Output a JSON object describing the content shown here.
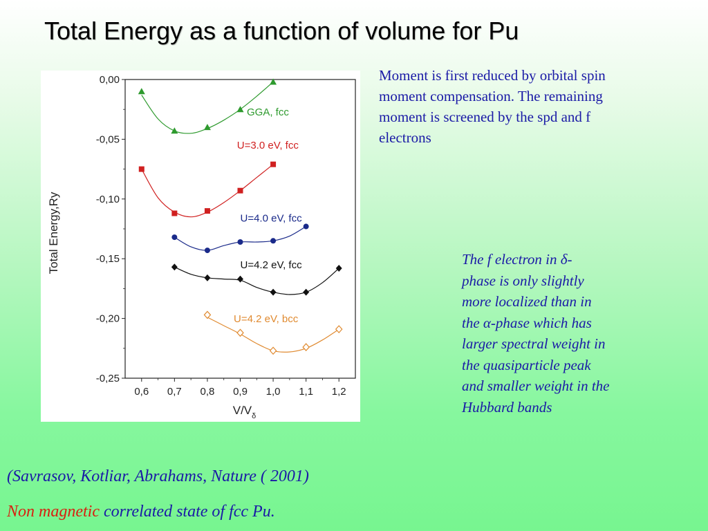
{
  "title": "Total Energy as a function of volume for Pu",
  "note_right": {
    "lines": [
      "Moment is first reduced by orbital spin",
      "moment compensation. The remaining",
      "moment is   screened by the spd and f",
      "electrons"
    ]
  },
  "note_italic": {
    "lines": [
      "The  f electron in δ-",
      "phase is  only slightly",
      "more  localized  than in",
      "the α-phase which has",
      "larger spectral weight in",
      "the quasiparticle peak",
      "and smaller weight in the",
      "Hubbard bands"
    ]
  },
  "citation": "(Savrasov, Kotliar, Abrahams,  Nature ( 2001)",
  "state": {
    "red_part": "Non magnetic",
    "blue_part": " correlated state of fcc Pu."
  },
  "chart_data": {
    "type": "line",
    "xlabel": "V/V",
    "xlabel_sub": "δ",
    "ylabel": "Total Energy,Ry",
    "xlim": [
      0.55,
      1.25
    ],
    "ylim": [
      -0.25,
      0.0
    ],
    "x_ticks": [
      "0,6",
      "0,7",
      "0,8",
      "0,9",
      "1,0",
      "1,1",
      "1,2"
    ],
    "y_ticks": [
      "0,00",
      "-0,05",
      "-0,10",
      "-0,15",
      "-0,20",
      "-0,25"
    ],
    "grid": false,
    "series": [
      {
        "name": "GGA, fcc",
        "color": "#2e9a2e",
        "marker": "triangle",
        "x": [
          0.6,
          0.7,
          0.8,
          0.9,
          1.0
        ],
        "y": [
          -0.01,
          -0.043,
          -0.04,
          -0.025,
          -0.002
        ],
        "curve": [
          [
            0.6,
            -0.013
          ],
          [
            0.65,
            -0.033
          ],
          [
            0.7,
            -0.043
          ],
          [
            0.75,
            -0.045
          ],
          [
            0.8,
            -0.041
          ],
          [
            0.85,
            -0.034
          ],
          [
            0.9,
            -0.025
          ],
          [
            0.95,
            -0.014
          ],
          [
            1.0,
            -0.002
          ]
        ]
      },
      {
        "name": "U=3.0 eV, fcc",
        "color": "#d02020",
        "marker": "square",
        "x": [
          0.6,
          0.7,
          0.8,
          0.9,
          1.0
        ],
        "y": [
          -0.075,
          -0.112,
          -0.11,
          -0.093,
          -0.071
        ],
        "curve": [
          [
            0.6,
            -0.075
          ],
          [
            0.65,
            -0.099
          ],
          [
            0.7,
            -0.111
          ],
          [
            0.75,
            -0.115
          ],
          [
            0.8,
            -0.111
          ],
          [
            0.85,
            -0.103
          ],
          [
            0.9,
            -0.093
          ],
          [
            0.95,
            -0.082
          ],
          [
            1.0,
            -0.071
          ]
        ]
      },
      {
        "name": "U=4.0 eV, fcc",
        "color": "#1a2a8a",
        "marker": "circle",
        "x": [
          0.7,
          0.8,
          0.9,
          1.0,
          1.1
        ],
        "y": [
          -0.132,
          -0.143,
          -0.136,
          -0.135,
          -0.123
        ],
        "curve": [
          [
            0.7,
            -0.132
          ],
          [
            0.75,
            -0.14
          ],
          [
            0.8,
            -0.143
          ],
          [
            0.85,
            -0.139
          ],
          [
            0.9,
            -0.136
          ],
          [
            0.95,
            -0.136
          ],
          [
            1.0,
            -0.135
          ],
          [
            1.05,
            -0.131
          ],
          [
            1.1,
            -0.123
          ]
        ]
      },
      {
        "name": "U=4.2 eV, fcc",
        "color": "#111111",
        "marker": "diamond",
        "x": [
          0.7,
          0.8,
          0.9,
          1.0,
          1.1,
          1.2
        ],
        "y": [
          -0.157,
          -0.166,
          -0.167,
          -0.178,
          -0.178,
          -0.158
        ],
        "curve": [
          [
            0.7,
            -0.157
          ],
          [
            0.75,
            -0.163
          ],
          [
            0.8,
            -0.166
          ],
          [
            0.85,
            -0.167
          ],
          [
            0.9,
            -0.168
          ],
          [
            0.95,
            -0.174
          ],
          [
            1.0,
            -0.178
          ],
          [
            1.05,
            -0.18
          ],
          [
            1.1,
            -0.178
          ],
          [
            1.15,
            -0.17
          ],
          [
            1.2,
            -0.158
          ]
        ]
      },
      {
        "name": "U=4.2 eV, bcc",
        "color": "#e08a30",
        "marker": "diamond-open",
        "x": [
          0.8,
          0.9,
          1.0,
          1.1,
          1.2
        ],
        "y": [
          -0.197,
          -0.212,
          -0.227,
          -0.224,
          -0.209
        ],
        "curve": [
          [
            0.8,
            -0.199
          ],
          [
            0.85,
            -0.206
          ],
          [
            0.9,
            -0.213
          ],
          [
            0.95,
            -0.221
          ],
          [
            1.0,
            -0.227
          ],
          [
            1.05,
            -0.228
          ],
          [
            1.1,
            -0.225
          ],
          [
            1.15,
            -0.218
          ],
          [
            1.2,
            -0.209
          ]
        ]
      }
    ]
  }
}
